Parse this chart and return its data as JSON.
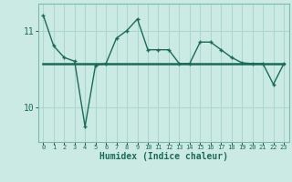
{
  "title": "",
  "xlabel": "Humidex (Indice chaleur)",
  "bg_color": "#cceae4",
  "grid_color": "#aad8d0",
  "line_color": "#1a6b5a",
  "x_values": [
    0,
    1,
    2,
    3,
    4,
    5,
    6,
    7,
    8,
    9,
    10,
    11,
    12,
    13,
    14,
    15,
    16,
    17,
    18,
    19,
    20,
    21,
    22,
    23
  ],
  "y_humidex": [
    11.2,
    10.8,
    10.65,
    10.6,
    9.75,
    10.55,
    10.57,
    10.9,
    11.0,
    11.15,
    10.75,
    10.75,
    10.75,
    10.57,
    10.57,
    10.85,
    10.85,
    10.75,
    10.65,
    10.58,
    10.57,
    10.57,
    10.3,
    10.57
  ],
  "y_mean": [
    10.57,
    10.57,
    10.57,
    10.57,
    10.57,
    10.57,
    10.57,
    10.57,
    10.57,
    10.57,
    10.57,
    10.57,
    10.57,
    10.57,
    10.57,
    10.57,
    10.57,
    10.57,
    10.57,
    10.57,
    10.57,
    10.57,
    10.57,
    10.57
  ],
  "ylim": [
    9.55,
    11.35
  ],
  "yticks": [
    10,
    11
  ],
  "xlim": [
    -0.5,
    23.5
  ]
}
